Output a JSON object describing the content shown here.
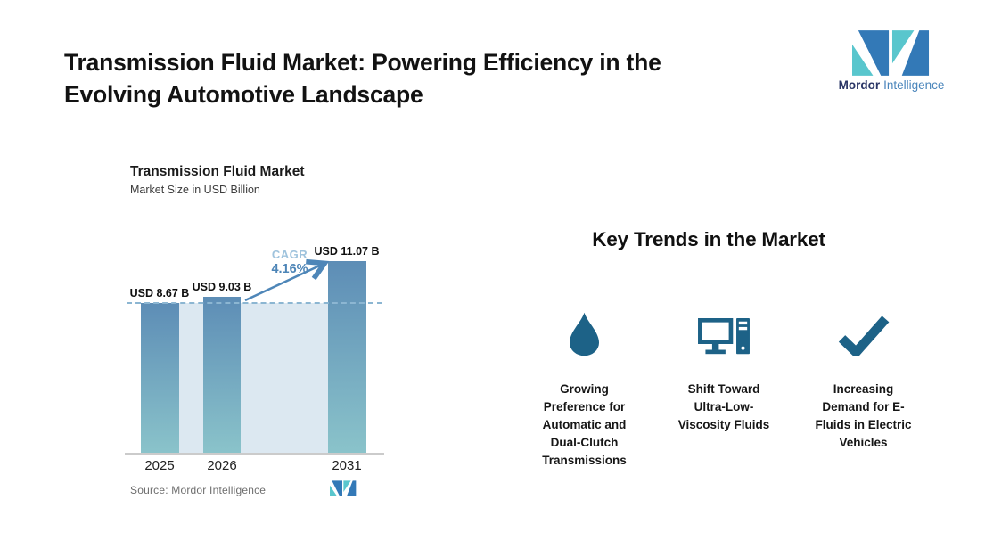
{
  "page": {
    "title_line1": "Transmission Fluid Market: Powering Efficiency in the",
    "title_line2": "Evolving Automotive Landscape"
  },
  "brand": {
    "name_bold": "Mordor",
    "name_light": "Intelligence",
    "logo_teal": "#59c6cd",
    "logo_blue": "#3379b7",
    "text_navy": "#2a3566",
    "text_blue": "#4a85bb"
  },
  "chart": {
    "title": "Transmission Fluid Market",
    "subtitle": "Market Size in USD Billion",
    "cagr_label": "CAGR",
    "cagr_value": "4.16%",
    "source": "Source: Mordor Intelligence"
  },
  "chart_data": {
    "type": "bar",
    "title": "Transmission Fluid Market",
    "subtitle": "Market Size in USD Billion",
    "unit": "USD Billion",
    "categories": [
      "2025",
      "2026",
      "2031"
    ],
    "values": [
      8.67,
      9.03,
      11.07
    ],
    "value_labels": [
      "USD 8.67 B",
      "USD 9.03 B",
      "USD 11.07 B"
    ],
    "cagr_percent": 4.16,
    "cagr_period": [
      "2026",
      "2031"
    ],
    "ylim": [
      0,
      11.07
    ],
    "reference_line_at": 8.67,
    "grid": "off",
    "legend": "none",
    "colors": {
      "bar_top": "#5d8db6",
      "bar_bottom": "#8ac3ca",
      "band": "#dce8f1",
      "dashed_line": "#8cb6d2",
      "arrow": "#4e86b8",
      "cagr_label_text": "#9fc3dd",
      "cagr_value_text": "#4d85b7",
      "axis": "#cbcbcb"
    }
  },
  "trends": {
    "heading": "Key Trends in the Market",
    "icon_color": "#1d6287",
    "items": [
      {
        "icon": "droplet-icon",
        "label": "Growing Preference for Automatic and Dual-Clutch Transmissions",
        "lines": [
          "Growing",
          "Preference for",
          "Automatic and",
          "Dual-Clutch",
          "Transmissions"
        ]
      },
      {
        "icon": "desktop-computer-icon",
        "label": "Shift Toward Ultra-Low-Viscosity Fluids",
        "lines": [
          "Shift Toward",
          "Ultra-Low-",
          "Viscosity Fluids"
        ]
      },
      {
        "icon": "checkmark-icon",
        "label": "Increasing Demand for E-Fluids in Electric Vehicles",
        "lines": [
          "Increasing",
          "Demand for E-",
          "Fluids in Electric",
          "Vehicles"
        ]
      }
    ]
  }
}
